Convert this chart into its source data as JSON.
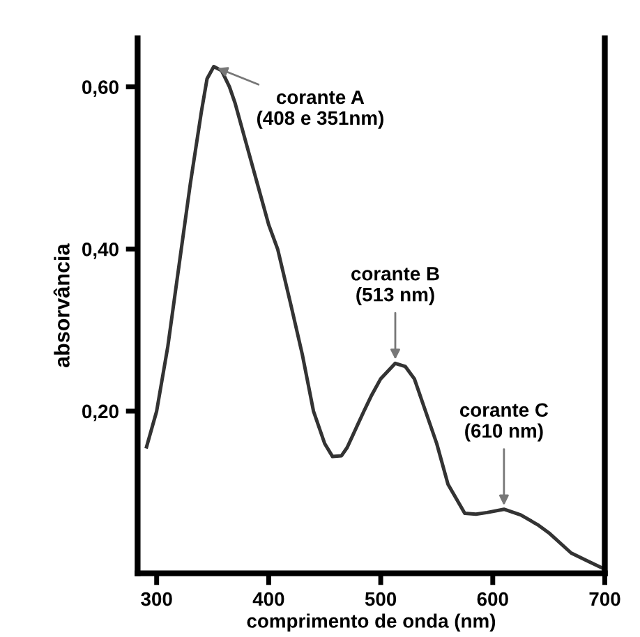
{
  "chart_data": {
    "type": "line",
    "xlabel": "comprimento de onda (nm)",
    "ylabel": "absorvância",
    "x": [
      291,
      300,
      310,
      320,
      330,
      340,
      345,
      351,
      358,
      365,
      370,
      380,
      390,
      400,
      408,
      420,
      430,
      440,
      450,
      457,
      465,
      470,
      485,
      492,
      500,
      513,
      522,
      530,
      540,
      550,
      560,
      575,
      585,
      595,
      610,
      625,
      640,
      650,
      670,
      685,
      700
    ],
    "series": [
      {
        "color": "#333333",
        "values": [
          0.156,
          0.2,
          0.28,
          0.38,
          0.48,
          0.57,
          0.61,
          0.625,
          0.62,
          0.6,
          0.58,
          0.53,
          0.48,
          0.43,
          0.4,
          0.33,
          0.27,
          0.2,
          0.16,
          0.144,
          0.145,
          0.155,
          0.2,
          0.22,
          0.24,
          0.259,
          0.255,
          0.24,
          0.2,
          0.16,
          0.11,
          0.074,
          0.073,
          0.075,
          0.079,
          0.072,
          0.06,
          0.05,
          0.025,
          0.015,
          0.005
        ]
      }
    ],
    "xlim": [
      283,
      700
    ],
    "ylim": [
      0,
      0.66
    ],
    "xticks": [
      300,
      400,
      500,
      600,
      700
    ],
    "yticks": [
      {
        "value": 0.2,
        "label": "0,20"
      },
      {
        "value": 0.4,
        "label": "0,40"
      },
      {
        "value": 0.6,
        "label": "0,60"
      }
    ],
    "annotations": [
      {
        "text": "corante A\n(408 e 351nm)",
        "x": 351,
        "y": 0.625
      },
      {
        "text": "corante B\n(513 nm)",
        "x": 513,
        "y": 0.259
      },
      {
        "text": "corante C\n(610 nm)",
        "x": 610,
        "y": 0.079
      }
    ],
    "grid": false,
    "legend": false,
    "marker": "none",
    "line_style": "solid"
  }
}
